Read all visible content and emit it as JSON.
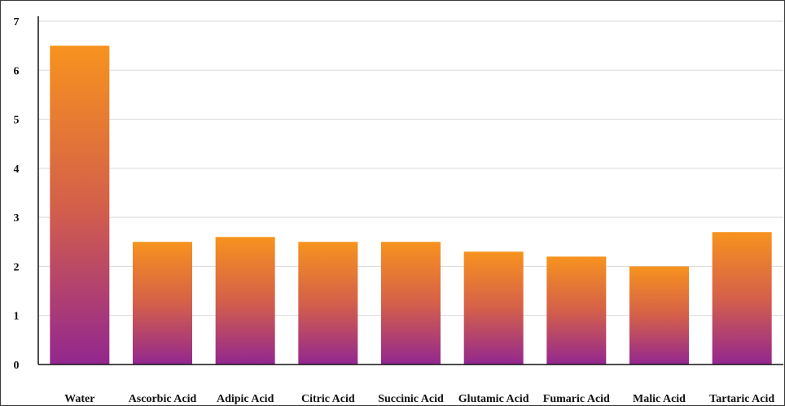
{
  "chart_data": {
    "type": "bar",
    "title": "",
    "xlabel": "",
    "ylabel": "",
    "categories": [
      "Water",
      "Ascorbic Acid",
      "Adipic Acid",
      "Citric Acid",
      "Succinic Acid",
      "Glutamic Acid",
      "Fumaric Acid",
      "Malic Acid",
      "Tartaric Acid"
    ],
    "values": [
      6.5,
      2.5,
      2.6,
      2.5,
      2.5,
      2.3,
      2.2,
      2.0,
      2.7
    ],
    "ylim": [
      0,
      7
    ],
    "yticks": [
      0,
      1,
      2,
      3,
      4,
      5,
      6,
      7
    ],
    "grid": true,
    "legend": "none",
    "colors": {
      "bar_top": "#f7931e",
      "bar_mid": "#d4604a",
      "bar_bottom": "#93278f",
      "grid": "#d9d9d9",
      "axis": "#111111",
      "frame": "#3a3a3a"
    }
  }
}
